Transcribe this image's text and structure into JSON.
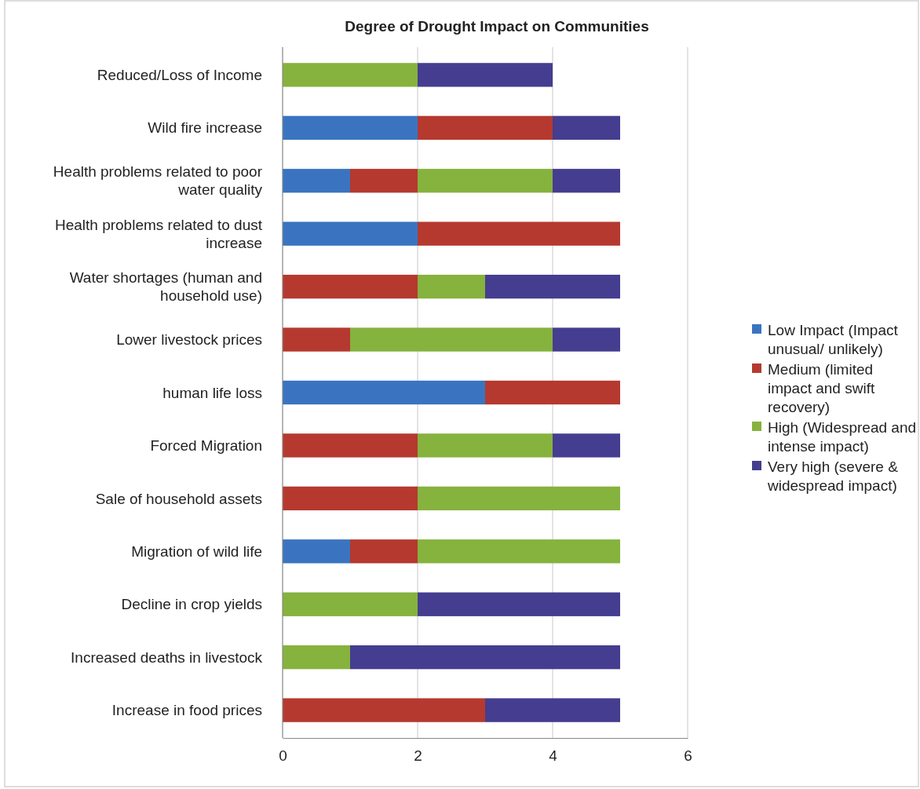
{
  "chart_data": {
    "type": "bar",
    "orientation": "horizontal",
    "stacked": true,
    "title": "Degree of Drought Impact on Communities",
    "categories": [
      "Reduced/Loss of Income",
      "Wild fire increase",
      "Health problems related to poor water quality",
      "Health problems related to dust increase",
      "Water shortages (human and household use)",
      "Lower livestock prices",
      "human life loss",
      "Forced Migration",
      "Sale of household assets",
      "Migration of wild life",
      "Decline in crop yields",
      "Increased deaths in livestock",
      "Increase in food prices"
    ],
    "series": [
      {
        "name": "Low Impact (Impact unusual/ unlikely)",
        "color": "#3a74c0",
        "values": [
          0,
          2,
          1,
          2,
          0,
          0,
          3,
          0,
          0,
          1,
          0,
          0,
          0
        ]
      },
      {
        "name": "Medium (limited impact and swift recovery)",
        "color": "#b5392f",
        "values": [
          0,
          2,
          1,
          3,
          2,
          1,
          2,
          2,
          2,
          1,
          0,
          0,
          3
        ]
      },
      {
        "name": "High (Widespread and intense impact)",
        "color": "#86b23e",
        "values": [
          2,
          0,
          2,
          0,
          1,
          3,
          0,
          2,
          3,
          3,
          2,
          1,
          0
        ]
      },
      {
        "name": "Very high (severe & widespread impact)",
        "color": "#453d8f",
        "values": [
          2,
          1,
          1,
          0,
          2,
          1,
          0,
          1,
          0,
          0,
          3,
          4,
          2
        ]
      }
    ],
    "xlim": [
      0,
      6
    ],
    "xticks": [
      0,
      2,
      4,
      6
    ],
    "grid": "x",
    "legend": "right"
  }
}
